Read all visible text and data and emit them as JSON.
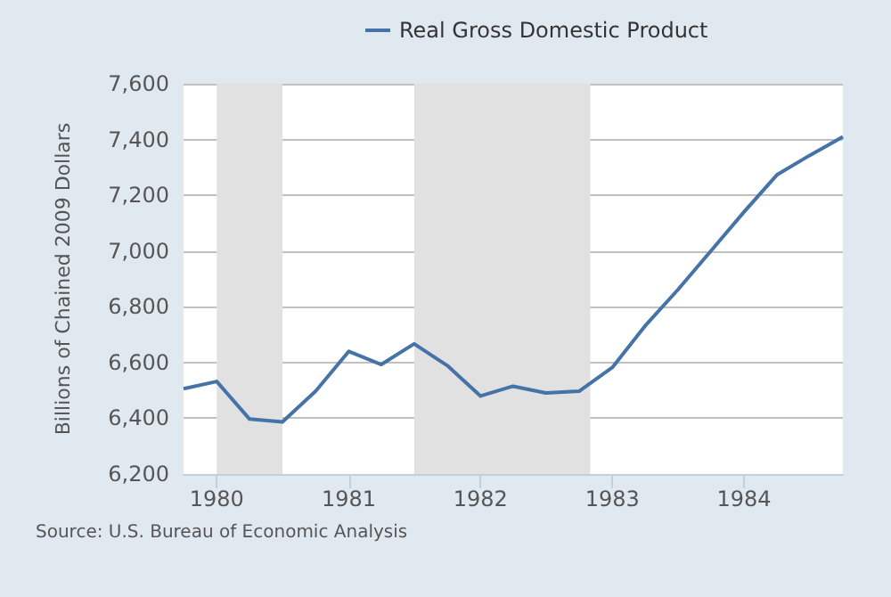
{
  "chart_data": {
    "type": "line",
    "ylabel": "Billions of Chained 2009 Dollars",
    "x": [
      "1979-10",
      "1980-01",
      "1980-04",
      "1980-07",
      "1980-10",
      "1981-01",
      "1981-04",
      "1981-07",
      "1981-10",
      "1982-01",
      "1982-04",
      "1982-07",
      "1982-10",
      "1983-01",
      "1983-04",
      "1983-07",
      "1983-10",
      "1984-01",
      "1984-04",
      "1984-07",
      "1984-10"
    ],
    "series": [
      {
        "name": "Real Gross Domestic Product",
        "color": "#4572a7",
        "values": [
          6506,
          6532,
          6397,
          6387,
          6497,
          6640,
          6593,
          6667,
          6589,
          6480,
          6515,
          6491,
          6497,
          6582,
          6730,
          6860,
          7000,
          7140,
          7273,
          7343,
          7410
        ]
      }
    ],
    "xlim": [
      "1979-10",
      "1984-10"
    ],
    "xticks": [
      {
        "value": "1980",
        "label": "1980"
      },
      {
        "value": "1981",
        "label": "1981"
      },
      {
        "value": "1982",
        "label": "1982"
      },
      {
        "value": "1983",
        "label": "1983"
      },
      {
        "value": "1984",
        "label": "1984"
      }
    ],
    "ylim": [
      6200,
      7600
    ],
    "yticks": [
      {
        "value": 6200,
        "label": "6,200"
      },
      {
        "value": 6400,
        "label": "6,400"
      },
      {
        "value": 6600,
        "label": "6,600"
      },
      {
        "value": 6800,
        "label": "6,800"
      },
      {
        "value": 7000,
        "label": "7,000"
      },
      {
        "value": 7200,
        "label": "7,200"
      },
      {
        "value": 7400,
        "label": "7,400"
      },
      {
        "value": 7600,
        "label": "7,600"
      }
    ],
    "bands": [
      {
        "axis": "x",
        "from": "1980-01",
        "to": "1980-07",
        "color": "#e1e1e1"
      },
      {
        "axis": "x",
        "from": "1981-07",
        "to": "1982-11",
        "color": "#e1e1e1"
      }
    ],
    "grid": "y",
    "legend": "top",
    "marker": "none",
    "line_style": "solid",
    "annotations": [
      "Source: U.S. Bureau of Economic Analysis"
    ]
  }
}
